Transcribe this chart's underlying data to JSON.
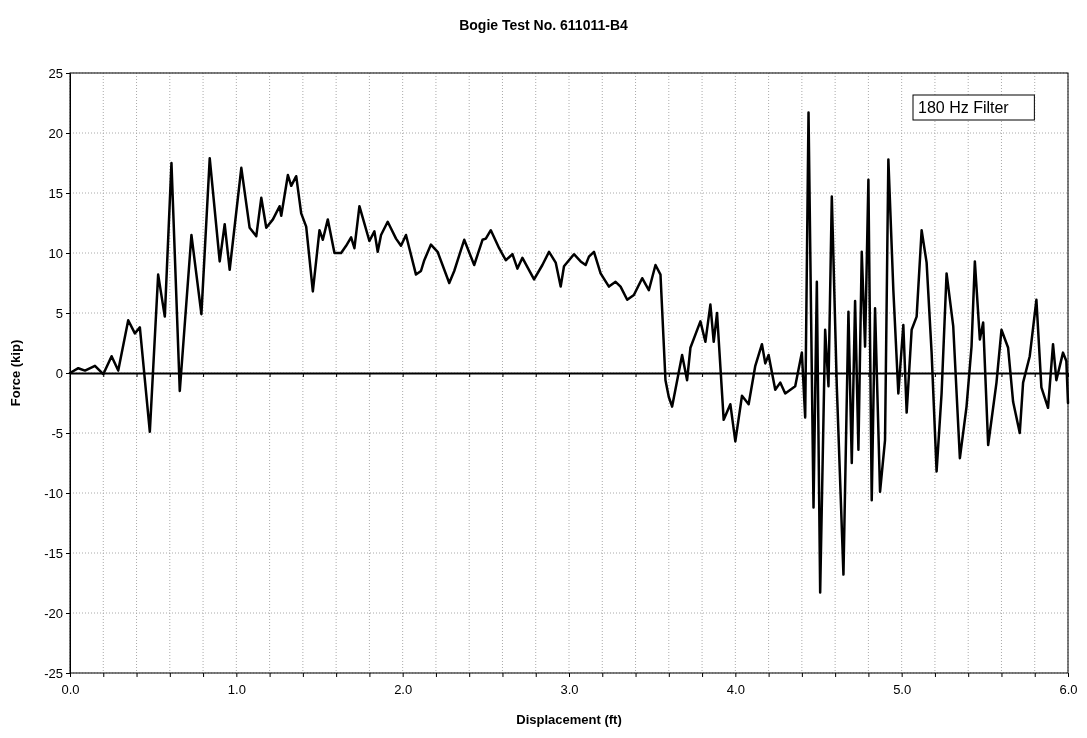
{
  "chart_data": {
    "type": "line",
    "title": "Bogie Test No. 611011-B4",
    "xlabel": "Displacement (ft)",
    "ylabel": "Force (kip)",
    "annotations": [
      "180 Hz Filter"
    ],
    "xlim": [
      0,
      6
    ],
    "ylim": [
      -25,
      25
    ],
    "xticks": [
      {
        "value": 0,
        "label": "0.0"
      },
      {
        "value": 0.2,
        "label": null
      },
      {
        "value": 0.4,
        "label": null
      },
      {
        "value": 0.6,
        "label": null
      },
      {
        "value": 0.8,
        "label": null
      },
      {
        "value": 1,
        "label": "1.0"
      },
      {
        "value": 1.2,
        "label": null
      },
      {
        "value": 1.4,
        "label": null
      },
      {
        "value": 1.6,
        "label": null
      },
      {
        "value": 1.8,
        "label": null
      },
      {
        "value": 2,
        "label": "2.0"
      },
      {
        "value": 2.2,
        "label": null
      },
      {
        "value": 2.4,
        "label": null
      },
      {
        "value": 2.6,
        "label": null
      },
      {
        "value": 2.8,
        "label": null
      },
      {
        "value": 3,
        "label": "3.0"
      },
      {
        "value": 3.2,
        "label": null
      },
      {
        "value": 3.4,
        "label": null
      },
      {
        "value": 3.6,
        "label": null
      },
      {
        "value": 3.8,
        "label": null
      },
      {
        "value": 4,
        "label": "4.0"
      },
      {
        "value": 4.2,
        "label": null
      },
      {
        "value": 4.4,
        "label": null
      },
      {
        "value": 4.6,
        "label": null
      },
      {
        "value": 4.8,
        "label": null
      },
      {
        "value": 5,
        "label": "5.0"
      },
      {
        "value": 5.2,
        "label": null
      },
      {
        "value": 5.4,
        "label": null
      },
      {
        "value": 5.6,
        "label": null
      },
      {
        "value": 5.8,
        "label": null
      },
      {
        "value": 6,
        "label": "6.0"
      }
    ],
    "yticks": [
      -25,
      -20,
      -15,
      -10,
      -5,
      0,
      5,
      10,
      15,
      20,
      25
    ],
    "grid": true,
    "line_style": "solid",
    "series": [
      {
        "color": "#000000",
        "x": [
          0,
          0.05,
          0.09,
          0.15,
          0.2,
          0.25,
          0.29,
          0.35,
          0.39,
          0.42,
          0.48,
          0.53,
          0.57,
          0.61,
          0.66,
          0.73,
          0.79,
          0.84,
          0.9,
          0.93,
          0.96,
          1.03,
          1.08,
          1.12,
          1.15,
          1.18,
          1.22,
          1.26,
          1.27,
          1.31,
          1.33,
          1.36,
          1.39,
          1.42,
          1.46,
          1.5,
          1.52,
          1.55,
          1.59,
          1.63,
          1.66,
          1.69,
          1.71,
          1.74,
          1.8,
          1.83,
          1.85,
          1.87,
          1.91,
          1.96,
          1.99,
          2.02,
          2.08,
          2.11,
          2.13,
          2.17,
          2.21,
          2.28,
          2.31,
          2.37,
          2.43,
          2.48,
          2.5,
          2.53,
          2.58,
          2.62,
          2.66,
          2.69,
          2.72,
          2.79,
          2.84,
          2.88,
          2.92,
          2.95,
          2.97,
          3.03,
          3.07,
          3.1,
          3.12,
          3.15,
          3.19,
          3.24,
          3.28,
          3.31,
          3.35,
          3.39,
          3.44,
          3.48,
          3.52,
          3.55,
          3.58,
          3.6,
          3.62,
          3.68,
          3.71,
          3.73,
          3.79,
          3.82,
          3.85,
          3.87,
          3.89,
          3.93,
          3.97,
          4.0,
          4.04,
          4.08,
          4.12,
          4.16,
          4.18,
          4.2,
          4.24,
          4.27,
          4.3,
          4.36,
          4.4,
          4.42,
          4.44,
          4.47,
          4.49,
          4.51,
          4.54,
          4.56,
          4.58,
          4.61,
          4.65,
          4.68,
          4.7,
          4.72,
          4.74,
          4.76,
          4.78,
          4.8,
          4.82,
          4.84,
          4.87,
          4.9,
          4.92,
          4.95,
          4.98,
          5.01,
          5.03,
          5.06,
          5.09,
          5.12,
          5.15,
          5.18,
          5.21,
          5.24,
          5.27,
          5.31,
          5.35,
          5.39,
          5.42,
          5.44,
          5.47,
          5.49,
          5.52,
          5.57,
          5.6,
          5.64,
          5.67,
          5.71,
          5.73,
          5.77,
          5.81,
          5.84,
          5.88,
          5.91,
          5.93,
          5.97,
          5.99,
          6.0
        ],
        "values": [
          0,
          0.4,
          0.2,
          0.6,
          -0.1,
          1.4,
          0.2,
          4.4,
          3.3,
          3.8,
          -4.9,
          8.2,
          4.7,
          17.5,
          -1.5,
          11.5,
          4.9,
          17.9,
          9.3,
          12.4,
          8.6,
          17.1,
          12.1,
          11.4,
          14.6,
          12.1,
          12.8,
          13.9,
          13.1,
          16.5,
          15.6,
          16.4,
          13.3,
          12.2,
          6.8,
          11.9,
          11.1,
          12.8,
          10,
          10,
          10.6,
          11.3,
          10.4,
          13.9,
          11,
          11.8,
          10.1,
          11.5,
          12.6,
          11.2,
          10.6,
          11.5,
          8.2,
          8.5,
          9.4,
          10.7,
          10.1,
          7.5,
          8.5,
          11.1,
          9,
          11.1,
          11.2,
          11.9,
          10.4,
          9.4,
          9.9,
          8.7,
          9.6,
          7.8,
          9,
          10.1,
          9.2,
          7.2,
          8.9,
          9.9,
          9.3,
          9,
          9.7,
          10.1,
          8.3,
          7.2,
          7.6,
          7.2,
          6.1,
          6.5,
          7.9,
          6.9,
          9,
          8.2,
          -0.6,
          -2,
          -2.8,
          1.5,
          -0.6,
          2.1,
          4.3,
          2.6,
          5.7,
          2.6,
          5,
          -3.9,
          -2.6,
          -5.7,
          -1.9,
          -2.6,
          0.6,
          2.4,
          0.8,
          1.5,
          -1.4,
          -0.8,
          -1.7,
          -1.1,
          1.7,
          -3.7,
          21.7,
          -11.2,
          7.6,
          -18.3,
          3.6,
          -1.1,
          14.7,
          -1.1,
          -16.8,
          5.1,
          -7.5,
          6,
          -6.4,
          10.1,
          2.2,
          16.1,
          -10.6,
          5.4,
          -9.9,
          -5.6,
          17.8,
          6.9,
          -1.7,
          4,
          -3.3,
          3.6,
          4.7,
          11.9,
          9.2,
          1.7,
          -8.2,
          -1.7,
          8.3,
          3.9,
          -7.1,
          -2.8,
          2.2,
          9.3,
          2.8,
          4.2,
          -6,
          -0.8,
          3.6,
          2.1,
          -2.4,
          -5,
          -0.8,
          1.4,
          6.1,
          -1.2,
          -2.9,
          2.4,
          -0.6,
          1.7,
          1,
          -2.5
        ]
      }
    ]
  }
}
